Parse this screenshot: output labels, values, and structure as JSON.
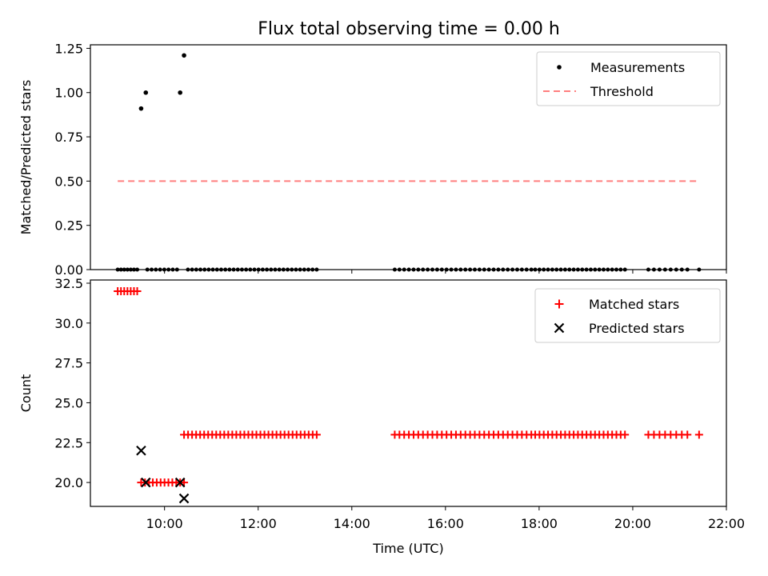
{
  "title": "Flux total observing time = 0.00 h",
  "chart_data": [
    {
      "type": "scatter",
      "ylabel": "Matched/Predicted stars",
      "xlim": [
        "08:25",
        "22:00"
      ],
      "ylim": [
        0,
        1.27
      ],
      "yticks": [
        "0.00",
        "0.25",
        "0.50",
        "0.75",
        "1.00",
        "1.25"
      ],
      "ytick_values": [
        0,
        0.25,
        0.5,
        0.75,
        1.0,
        1.25
      ],
      "xticks": [
        "10:00",
        "12:00",
        "14:00",
        "16:00",
        "18:00",
        "20:00",
        "22:00"
      ],
      "xticks_labeled": false,
      "legend": {
        "position": "top-right",
        "entries": [
          "Measurements",
          "Threshold"
        ]
      },
      "series": [
        {
          "name": "Measurements",
          "style": "point",
          "color": "#000000",
          "x": [
            "09:30",
            "09:36",
            "10:20",
            "10:25"
          ],
          "y": [
            0.91,
            1.0,
            1.0,
            1.21
          ]
        },
        {
          "name": "Threshold",
          "style": "dashed-line",
          "color": "#ff7f7f",
          "x": [
            "09:00",
            "21:25"
          ],
          "y": [
            0.5,
            0.5
          ]
        }
      ],
      "zero_row": {
        "style": "point",
        "color": "#000000",
        "y": 0,
        "segments": [
          {
            "from": "09:00",
            "to": "09:25",
            "count": 7
          },
          {
            "from": "09:38",
            "to": "10:16",
            "count": 8
          },
          {
            "from": "10:30",
            "to": "13:15",
            "count": 32
          },
          {
            "from": "14:55",
            "to": "17:50",
            "count": 30
          },
          {
            "from": "17:55",
            "to": "19:50",
            "count": 22
          },
          {
            "from": "20:20",
            "to": "21:10",
            "count": 8
          },
          {
            "from": "21:25",
            "to": "21:25",
            "count": 1
          }
        ]
      }
    },
    {
      "type": "scatter",
      "xlabel": "Time (UTC)",
      "ylabel": "Count",
      "xlim": [
        "08:25",
        "22:00"
      ],
      "ylim": [
        18.5,
        32.7
      ],
      "yticks": [
        "20.0",
        "22.5",
        "25.0",
        "27.5",
        "30.0",
        "32.5"
      ],
      "ytick_values": [
        20,
        22.5,
        25,
        27.5,
        30,
        32.5
      ],
      "xticks": [
        "10:00",
        "12:00",
        "14:00",
        "16:00",
        "18:00",
        "20:00",
        "22:00"
      ],
      "legend": {
        "position": "top-right",
        "entries": [
          "Matched stars",
          "Predicted stars"
        ]
      },
      "series": [
        {
          "name": "Matched stars",
          "marker": "plus",
          "color": "#ff0000",
          "segments": [
            {
              "from": "09:00",
              "to": "09:25",
              "count": 7,
              "value": 32
            },
            {
              "from": "09:30",
              "to": "10:25",
              "count": 12,
              "value": 20
            },
            {
              "from": "10:25",
              "to": "13:15",
              "count": 34,
              "value": 23
            },
            {
              "from": "14:55",
              "to": "17:50",
              "count": 30,
              "value": 23
            },
            {
              "from": "17:55",
              "to": "19:50",
              "count": 22,
              "value": 23
            },
            {
              "from": "20:20",
              "to": "21:10",
              "count": 8,
              "value": 23
            },
            {
              "from": "21:25",
              "to": "21:25",
              "count": 1,
              "value": 23
            }
          ]
        },
        {
          "name": "Predicted stars",
          "marker": "x",
          "color": "#000000",
          "x": [
            "09:30",
            "09:36",
            "10:20",
            "10:25"
          ],
          "y": [
            22,
            20,
            20,
            19
          ]
        }
      ]
    }
  ]
}
